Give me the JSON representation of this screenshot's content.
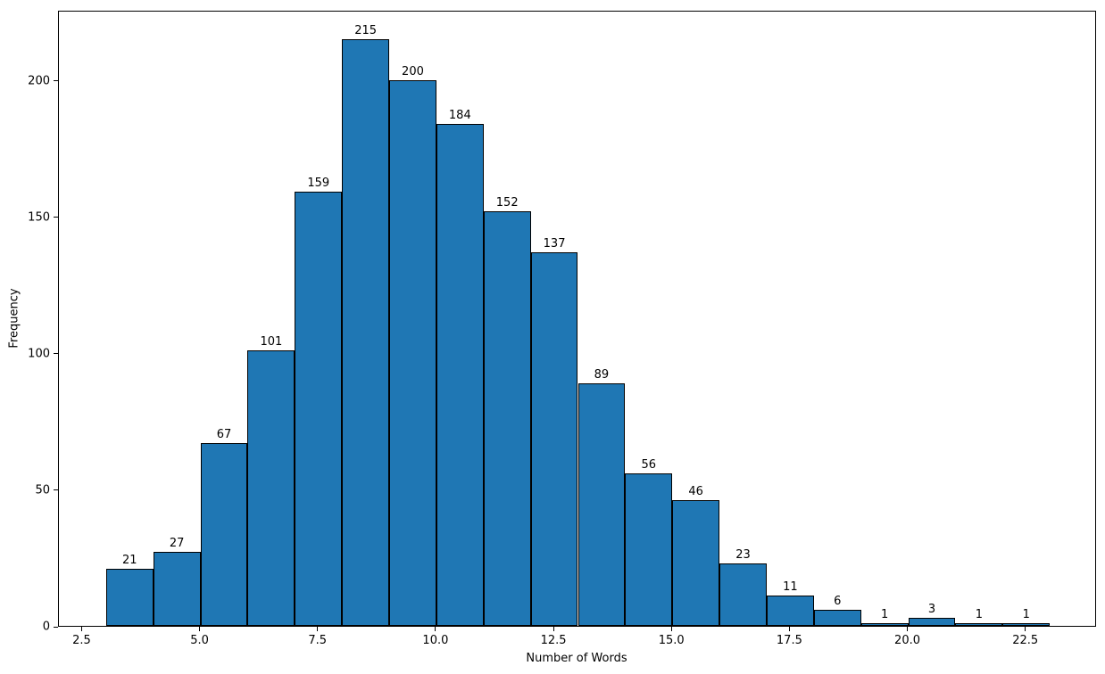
{
  "chart_data": {
    "type": "bar",
    "subtype": "histogram",
    "title": "",
    "xlabel": "Number of Words",
    "ylabel": "Frequency",
    "bin_edges": [
      3,
      4,
      5,
      6,
      7,
      8,
      9,
      10,
      11,
      12,
      13,
      14,
      15,
      16,
      17,
      18,
      19,
      20,
      21,
      22,
      23
    ],
    "values": [
      21,
      27,
      67,
      101,
      159,
      215,
      200,
      184,
      152,
      137,
      89,
      56,
      46,
      23,
      11,
      6,
      1,
      3,
      1,
      1
    ],
    "bar_value_labels": [
      "21",
      "27",
      "67",
      "101",
      "159",
      "215",
      "200",
      "184",
      "152",
      "137",
      "89",
      "56",
      "46",
      "23",
      "11",
      "6",
      "1",
      "3",
      "1",
      "1"
    ],
    "x_ticks": [
      {
        "value": 2.5,
        "label": "2.5"
      },
      {
        "value": 5.0,
        "label": "5.0"
      },
      {
        "value": 7.5,
        "label": "7.5"
      },
      {
        "value": 10.0,
        "label": "10.0"
      },
      {
        "value": 12.5,
        "label": "12.5"
      },
      {
        "value": 15.0,
        "label": "15.0"
      },
      {
        "value": 17.5,
        "label": "17.5"
      },
      {
        "value": 20.0,
        "label": "20.0"
      },
      {
        "value": 22.5,
        "label": "22.5"
      }
    ],
    "y_ticks": [
      {
        "value": 0,
        "label": "0"
      },
      {
        "value": 50,
        "label": "50"
      },
      {
        "value": 100,
        "label": "100"
      },
      {
        "value": 150,
        "label": "150"
      },
      {
        "value": 200,
        "label": "200"
      }
    ],
    "xlim": [
      2,
      24
    ],
    "ylim": [
      0,
      225.75
    ],
    "bar_color": "#1f77b4",
    "bar_edge_color": "#000000",
    "text_color": "#000000",
    "background_color": "#ffffff",
    "grid": false,
    "legend_position": "none"
  }
}
